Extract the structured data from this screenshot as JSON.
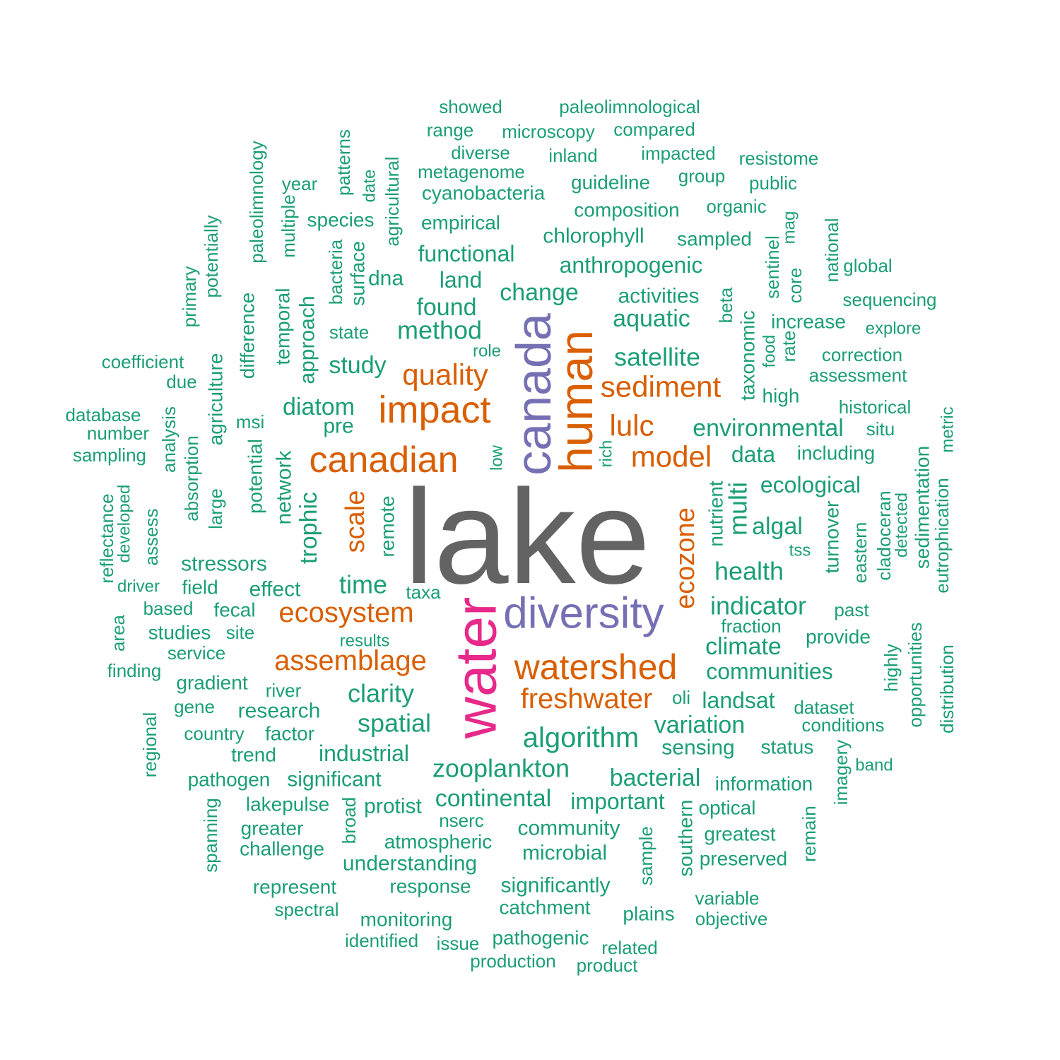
{
  "colors": {
    "tier1": "#636363",
    "tier2": "#e7298a",
    "tier3": "#7570b3",
    "tier4": "#d95f02",
    "tier5": "#1b9e77"
  },
  "words": [
    {
      "text": "lake",
      "tier": 1
    },
    {
      "text": "water",
      "tier": 2
    },
    {
      "text": "canada",
      "tier": 3
    },
    {
      "text": "diversity",
      "tier": 3
    },
    {
      "text": "human",
      "tier": 4
    },
    {
      "text": "impact",
      "tier": 4
    },
    {
      "text": "canadian",
      "tier": 4
    },
    {
      "text": "watershed",
      "tier": 4
    },
    {
      "text": "quality",
      "tier": 4
    },
    {
      "text": "sediment",
      "tier": 4
    },
    {
      "text": "model",
      "tier": 4
    },
    {
      "text": "ecosystem",
      "tier": 4
    },
    {
      "text": "assemblage",
      "tier": 4
    },
    {
      "text": "freshwater",
      "tier": 4
    },
    {
      "text": "ecozone",
      "tier": 4
    },
    {
      "text": "scale",
      "tier": 4
    },
    {
      "text": "lulc",
      "tier": 4
    },
    {
      "text": "showed",
      "tier": 5
    },
    {
      "text": "paleolimnological",
      "tier": 5
    },
    {
      "text": "range",
      "tier": 5
    },
    {
      "text": "microscopy",
      "tier": 5
    },
    {
      "text": "compared",
      "tier": 5
    },
    {
      "text": "diverse",
      "tier": 5
    },
    {
      "text": "inland",
      "tier": 5
    },
    {
      "text": "impacted",
      "tier": 5
    },
    {
      "text": "resistome",
      "tier": 5
    },
    {
      "text": "metagenome",
      "tier": 5
    },
    {
      "text": "group",
      "tier": 5
    },
    {
      "text": "year",
      "tier": 5
    },
    {
      "text": "guideline",
      "tier": 5
    },
    {
      "text": "public",
      "tier": 5
    },
    {
      "text": "cyanobacteria",
      "tier": 5
    },
    {
      "text": "composition",
      "tier": 5
    },
    {
      "text": "organic",
      "tier": 5
    },
    {
      "text": "species",
      "tier": 5
    },
    {
      "text": "empirical",
      "tier": 5
    },
    {
      "text": "chlorophyll",
      "tier": 5
    },
    {
      "text": "sampled",
      "tier": 5
    },
    {
      "text": "functional",
      "tier": 5
    },
    {
      "text": "anthropogenic",
      "tier": 5
    },
    {
      "text": "global",
      "tier": 5
    },
    {
      "text": "dna",
      "tier": 5
    },
    {
      "text": "land",
      "tier": 5
    },
    {
      "text": "change",
      "tier": 5
    },
    {
      "text": "activities",
      "tier": 5
    },
    {
      "text": "sequencing",
      "tier": 5
    },
    {
      "text": "found",
      "tier": 5
    },
    {
      "text": "aquatic",
      "tier": 5
    },
    {
      "text": "increase",
      "tier": 5
    },
    {
      "text": "state",
      "tier": 5
    },
    {
      "text": "method",
      "tier": 5
    },
    {
      "text": "explore",
      "tier": 5
    },
    {
      "text": "role",
      "tier": 5
    },
    {
      "text": "correction",
      "tier": 5
    },
    {
      "text": "coefficient",
      "tier": 5
    },
    {
      "text": "study",
      "tier": 5
    },
    {
      "text": "satellite",
      "tier": 5
    },
    {
      "text": "assessment",
      "tier": 5
    },
    {
      "text": "due",
      "tier": 5
    },
    {
      "text": "high",
      "tier": 5
    },
    {
      "text": "diatom",
      "tier": 5
    },
    {
      "text": "historical",
      "tier": 5
    },
    {
      "text": "database",
      "tier": 5
    },
    {
      "text": "msi",
      "tier": 5
    },
    {
      "text": "pre",
      "tier": 5
    },
    {
      "text": "environmental",
      "tier": 5
    },
    {
      "text": "situ",
      "tier": 5
    },
    {
      "text": "number",
      "tier": 5
    },
    {
      "text": "sampling",
      "tier": 5
    },
    {
      "text": "data",
      "tier": 5
    },
    {
      "text": "including",
      "tier": 5
    },
    {
      "text": "ecological",
      "tier": 5
    },
    {
      "text": "algal",
      "tier": 5
    },
    {
      "text": "tss",
      "tier": 5
    },
    {
      "text": "stressors",
      "tier": 5
    },
    {
      "text": "health",
      "tier": 5
    },
    {
      "text": "driver",
      "tier": 5
    },
    {
      "text": "field",
      "tier": 5
    },
    {
      "text": "effect",
      "tier": 5
    },
    {
      "text": "time",
      "tier": 5
    },
    {
      "text": "taxa",
      "tier": 5
    },
    {
      "text": "based",
      "tier": 5
    },
    {
      "text": "fecal",
      "tier": 5
    },
    {
      "text": "indicator",
      "tier": 5
    },
    {
      "text": "past",
      "tier": 5
    },
    {
      "text": "studies",
      "tier": 5
    },
    {
      "text": "site",
      "tier": 5
    },
    {
      "text": "fraction",
      "tier": 5
    },
    {
      "text": "results",
      "tier": 5
    },
    {
      "text": "provide",
      "tier": 5
    },
    {
      "text": "service",
      "tier": 5
    },
    {
      "text": "climate",
      "tier": 5
    },
    {
      "text": "finding",
      "tier": 5
    },
    {
      "text": "communities",
      "tier": 5
    },
    {
      "text": "gradient",
      "tier": 5
    },
    {
      "text": "river",
      "tier": 5
    },
    {
      "text": "clarity",
      "tier": 5
    },
    {
      "text": "oli",
      "tier": 5
    },
    {
      "text": "landsat",
      "tier": 5
    },
    {
      "text": "gene",
      "tier": 5
    },
    {
      "text": "dataset",
      "tier": 5
    },
    {
      "text": "research",
      "tier": 5
    },
    {
      "text": "spatial",
      "tier": 5
    },
    {
      "text": "conditions",
      "tier": 5
    },
    {
      "text": "country",
      "tier": 5
    },
    {
      "text": "factor",
      "tier": 5
    },
    {
      "text": "variation",
      "tier": 5
    },
    {
      "text": "algorithm",
      "tier": 5
    },
    {
      "text": "sensing",
      "tier": 5
    },
    {
      "text": "status",
      "tier": 5
    },
    {
      "text": "trend",
      "tier": 5
    },
    {
      "text": "industrial",
      "tier": 5
    },
    {
      "text": "zooplankton",
      "tier": 5
    },
    {
      "text": "band",
      "tier": 5
    },
    {
      "text": "pathogen",
      "tier": 5
    },
    {
      "text": "significant",
      "tier": 5
    },
    {
      "text": "bacterial",
      "tier": 5
    },
    {
      "text": "information",
      "tier": 5
    },
    {
      "text": "lakepulse",
      "tier": 5
    },
    {
      "text": "protist",
      "tier": 5
    },
    {
      "text": "continental",
      "tier": 5
    },
    {
      "text": "important",
      "tier": 5
    },
    {
      "text": "optical",
      "tier": 5
    },
    {
      "text": "nserc",
      "tier": 5
    },
    {
      "text": "greater",
      "tier": 5
    },
    {
      "text": "community",
      "tier": 5
    },
    {
      "text": "greatest",
      "tier": 5
    },
    {
      "text": "atmospheric",
      "tier": 5
    },
    {
      "text": "challenge",
      "tier": 5
    },
    {
      "text": "microbial",
      "tier": 5
    },
    {
      "text": "preserved",
      "tier": 5
    },
    {
      "text": "understanding",
      "tier": 5
    },
    {
      "text": "represent",
      "tier": 5
    },
    {
      "text": "response",
      "tier": 5
    },
    {
      "text": "significantly",
      "tier": 5
    },
    {
      "text": "variable",
      "tier": 5
    },
    {
      "text": "spectral",
      "tier": 5
    },
    {
      "text": "catchment",
      "tier": 5
    },
    {
      "text": "plains",
      "tier": 5
    },
    {
      "text": "objective",
      "tier": 5
    },
    {
      "text": "monitoring",
      "tier": 5
    },
    {
      "text": "identified",
      "tier": 5
    },
    {
      "text": "issue",
      "tier": 5
    },
    {
      "text": "pathogenic",
      "tier": 5
    },
    {
      "text": "related",
      "tier": 5
    },
    {
      "text": "production",
      "tier": 5
    },
    {
      "text": "product",
      "tier": 5
    },
    {
      "text": "paleolimnology",
      "tier": 5
    },
    {
      "text": "patterns",
      "tier": 5
    },
    {
      "text": "date",
      "tier": 5
    },
    {
      "text": "agricultural",
      "tier": 5
    },
    {
      "text": "multiple",
      "tier": 5
    },
    {
      "text": "bacteria",
      "tier": 5
    },
    {
      "text": "surface",
      "tier": 5
    },
    {
      "text": "potentially",
      "tier": 5
    },
    {
      "text": "primary",
      "tier": 5
    },
    {
      "text": "difference",
      "tier": 5
    },
    {
      "text": "temporal",
      "tier": 5
    },
    {
      "text": "approach",
      "tier": 5
    },
    {
      "text": "agriculture",
      "tier": 5
    },
    {
      "text": "analysis",
      "tier": 5
    },
    {
      "text": "absorption",
      "tier": 5
    },
    {
      "text": "large",
      "tier": 5
    },
    {
      "text": "potential",
      "tier": 5
    },
    {
      "text": "network",
      "tier": 5
    },
    {
      "text": "trophic",
      "tier": 5
    },
    {
      "text": "remote",
      "tier": 5
    },
    {
      "text": "low",
      "tier": 5
    },
    {
      "text": "rich",
      "tier": 5
    },
    {
      "text": "reflectance",
      "tier": 5
    },
    {
      "text": "developed",
      "tier": 5
    },
    {
      "text": "assess",
      "tier": 5
    },
    {
      "text": "area",
      "tier": 5
    },
    {
      "text": "regional",
      "tier": 5
    },
    {
      "text": "spanning",
      "tier": 5
    },
    {
      "text": "broad",
      "tier": 5
    },
    {
      "text": "sample",
      "tier": 5
    },
    {
      "text": "southern",
      "tier": 5
    },
    {
      "text": "remain",
      "tier": 5
    },
    {
      "text": "imagery",
      "tier": 5
    },
    {
      "text": "highly",
      "tier": 5
    },
    {
      "text": "opportunities",
      "tier": 5
    },
    {
      "text": "distribution",
      "tier": 5
    },
    {
      "text": "turnover",
      "tier": 5
    },
    {
      "text": "eastern",
      "tier": 5
    },
    {
      "text": "cladoceran",
      "tier": 5
    },
    {
      "text": "detected",
      "tier": 5
    },
    {
      "text": "sedimentation",
      "tier": 5
    },
    {
      "text": "eutrophication",
      "tier": 5
    },
    {
      "text": "metric",
      "tier": 5
    },
    {
      "text": "nutrient",
      "tier": 5
    },
    {
      "text": "multi",
      "tier": 5
    },
    {
      "text": "taxonomic",
      "tier": 5
    },
    {
      "text": "food",
      "tier": 5
    },
    {
      "text": "rate",
      "tier": 5
    },
    {
      "text": "beta",
      "tier": 5
    },
    {
      "text": "sentinel",
      "tier": 5
    },
    {
      "text": "core",
      "tier": 5
    },
    {
      "text": "mag",
      "tier": 5
    },
    {
      "text": "national",
      "tier": 5
    }
  ]
}
